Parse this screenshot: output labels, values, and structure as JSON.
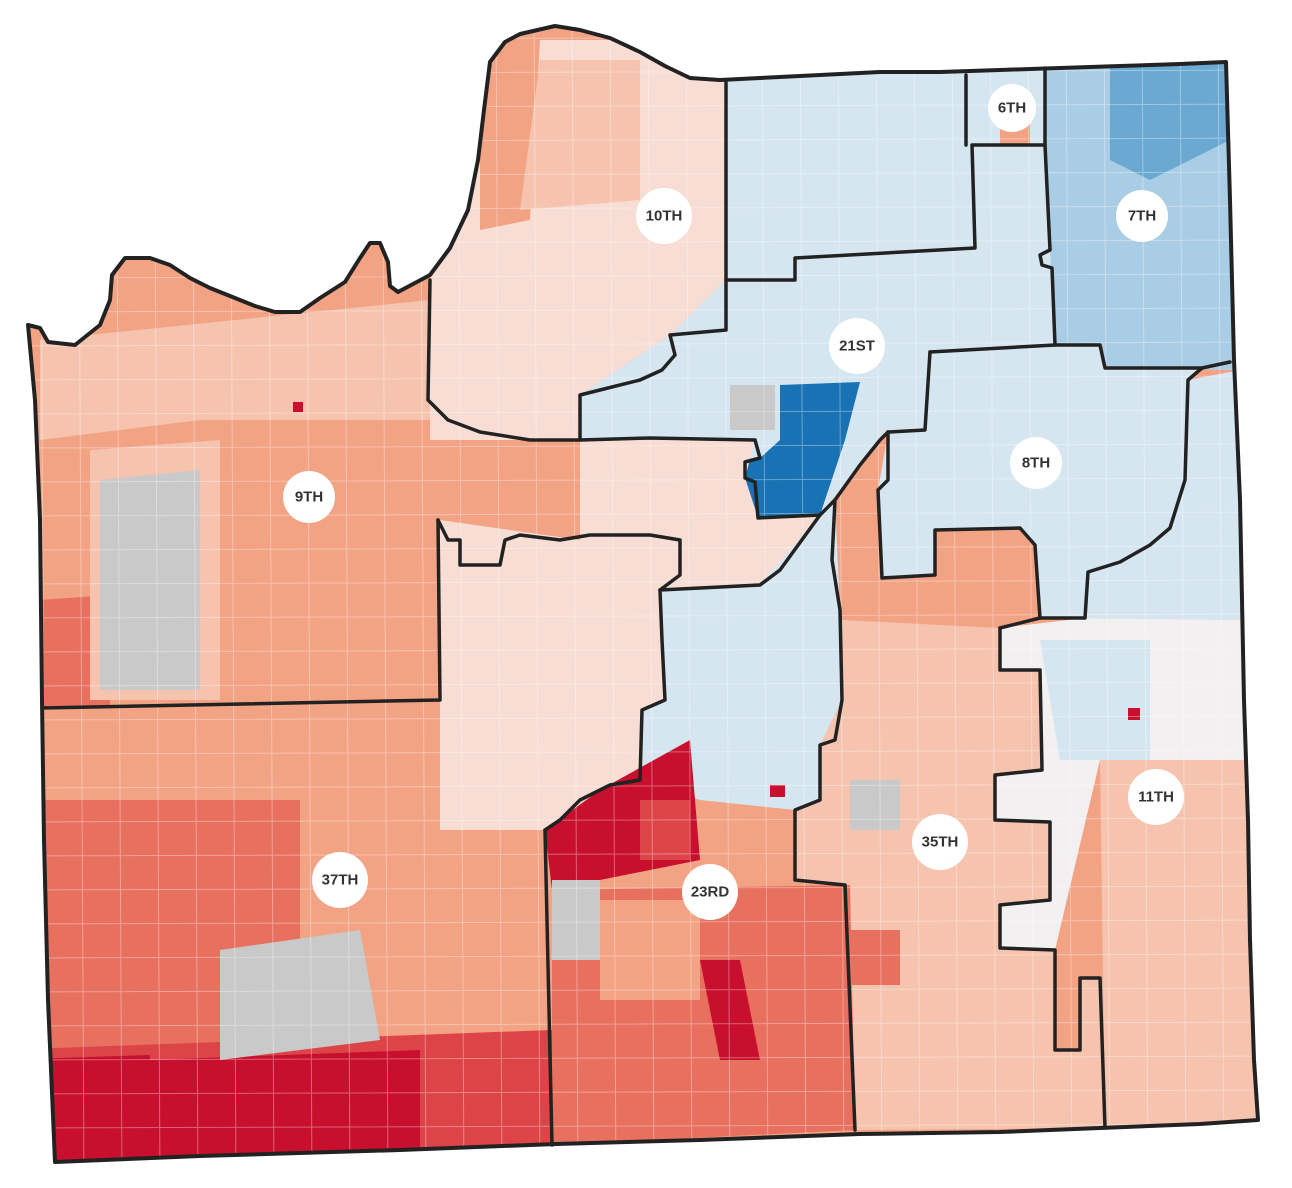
{
  "map": {
    "colors": {
      "deep_red": "#c8102e",
      "red": "#dd4447",
      "salmon_dark": "#e8705f",
      "salmon": "#f2a384",
      "salmon_light": "#f6c3af",
      "pink_light": "#f7ddd3",
      "neutral": "#f2f0f1",
      "blue_light": "#d6e6f1",
      "blue_mid": "#a9cde4",
      "blue": "#6ba9d3",
      "blue_dark": "#1872b3",
      "no_data_gray": "#c9c9c9",
      "district_border": "#222222"
    },
    "districts": [
      {
        "id": "d6",
        "label": "6TH"
      },
      {
        "id": "d7",
        "label": "7TH"
      },
      {
        "id": "d8",
        "label": "8TH"
      },
      {
        "id": "d9",
        "label": "9TH"
      },
      {
        "id": "d10",
        "label": "10TH"
      },
      {
        "id": "d11",
        "label": "11TH"
      },
      {
        "id": "d21",
        "label": "21ST"
      },
      {
        "id": "d23",
        "label": "23RD"
      },
      {
        "id": "d35",
        "label": "35TH"
      },
      {
        "id": "d37",
        "label": "37TH"
      }
    ]
  }
}
